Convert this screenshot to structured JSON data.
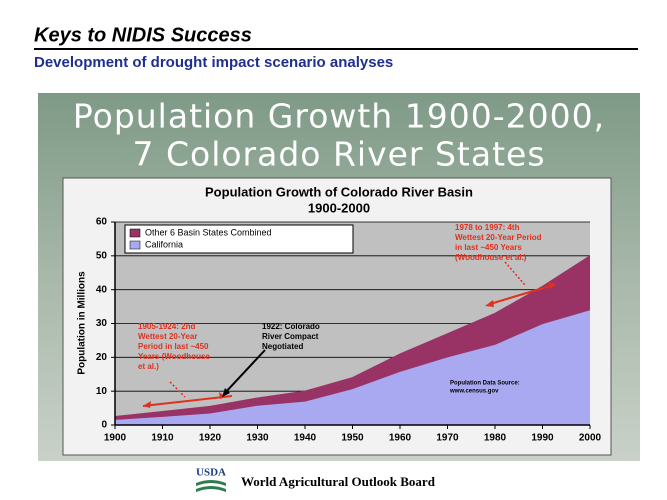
{
  "header": {
    "title": "Keys to NIDIS Success",
    "subtitle": "Development of drought impact scenario analyses"
  },
  "banner": {
    "lines": [
      "Population Growth 1900-2000,",
      "7 Colorado River States"
    ]
  },
  "chart_data": {
    "type": "area",
    "stacked": true,
    "title": "Population Growth of Colorado River Basin",
    "subtitle": "1900-2000",
    "y_label": "Population in Millions",
    "x": [
      1900,
      1910,
      1920,
      1930,
      1940,
      1950,
      1960,
      1970,
      1980,
      1990,
      2000
    ],
    "xlim": [
      1900,
      2000
    ],
    "xticks": [
      1900,
      1910,
      1920,
      1930,
      1940,
      1950,
      1960,
      1970,
      1980,
      1990,
      2000
    ],
    "ylim": [
      0,
      60
    ],
    "yticks": [
      0,
      10,
      20,
      30,
      40,
      50,
      60
    ],
    "grid": true,
    "series": [
      {
        "name": "California",
        "color": "#a9a9f2",
        "values": [
          1.5,
          2.4,
          3.4,
          5.7,
          6.9,
          10.6,
          15.7,
          20,
          23.7,
          29.8,
          33.9
        ]
      },
      {
        "name": "Other 6 Basin States Combined",
        "color": "#993366",
        "values": [
          1.0,
          1.6,
          2.1,
          2.3,
          3.1,
          3.4,
          5.3,
          7,
          9.3,
          11.2,
          16.1
        ]
      }
    ],
    "annotations": [
      {
        "lines": [
          "1905-1924: 2nd",
          "Wettest 20-Year",
          "Period in last ~450",
          "Years (Woodhouse",
          "et al.)"
        ]
      },
      {
        "lines": [
          "1922: Colorado",
          "River Compact",
          "Negotiated"
        ]
      },
      {
        "lines": [
          "1978 to 1997: 4th",
          "Wettest 20-Year Period",
          "in last ~450 Years",
          "(Woodhouse et al.)"
        ]
      },
      {
        "lines": [
          "Population Data Source:",
          "www.census.gov"
        ]
      }
    ]
  },
  "footer": {
    "logo": "USDA",
    "text": "World Agricultural Outlook Board"
  }
}
